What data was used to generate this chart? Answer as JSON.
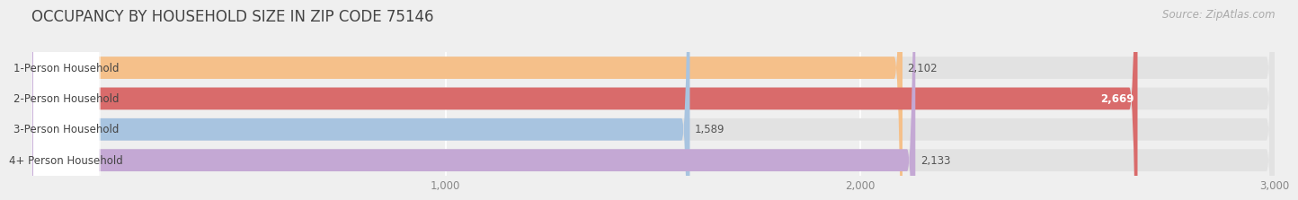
{
  "title": "OCCUPANCY BY HOUSEHOLD SIZE IN ZIP CODE 75146",
  "source": "Source: ZipAtlas.com",
  "categories": [
    "1-Person Household",
    "2-Person Household",
    "3-Person Household",
    "4+ Person Household"
  ],
  "values": [
    2102,
    2669,
    1589,
    2133
  ],
  "bar_colors": [
    "#F5C08A",
    "#D96B6B",
    "#A8C4E0",
    "#C4A8D4"
  ],
  "bar_label_colors": [
    "#555555",
    "#ffffff",
    "#555555",
    "#555555"
  ],
  "label_values": [
    "2,102",
    "2,669",
    "1,589",
    "2,133"
  ],
  "xlim": [
    0,
    3000
  ],
  "xticks": [
    1000,
    2000,
    3000
  ],
  "xtick_labels": [
    "1,000",
    "2,000",
    "3,000"
  ],
  "background_color": "#efefef",
  "bar_background_color": "#e2e2e2",
  "title_fontsize": 12,
  "source_fontsize": 8.5,
  "label_fontsize": 8.5,
  "category_fontsize": 8.5,
  "tick_fontsize": 8.5
}
